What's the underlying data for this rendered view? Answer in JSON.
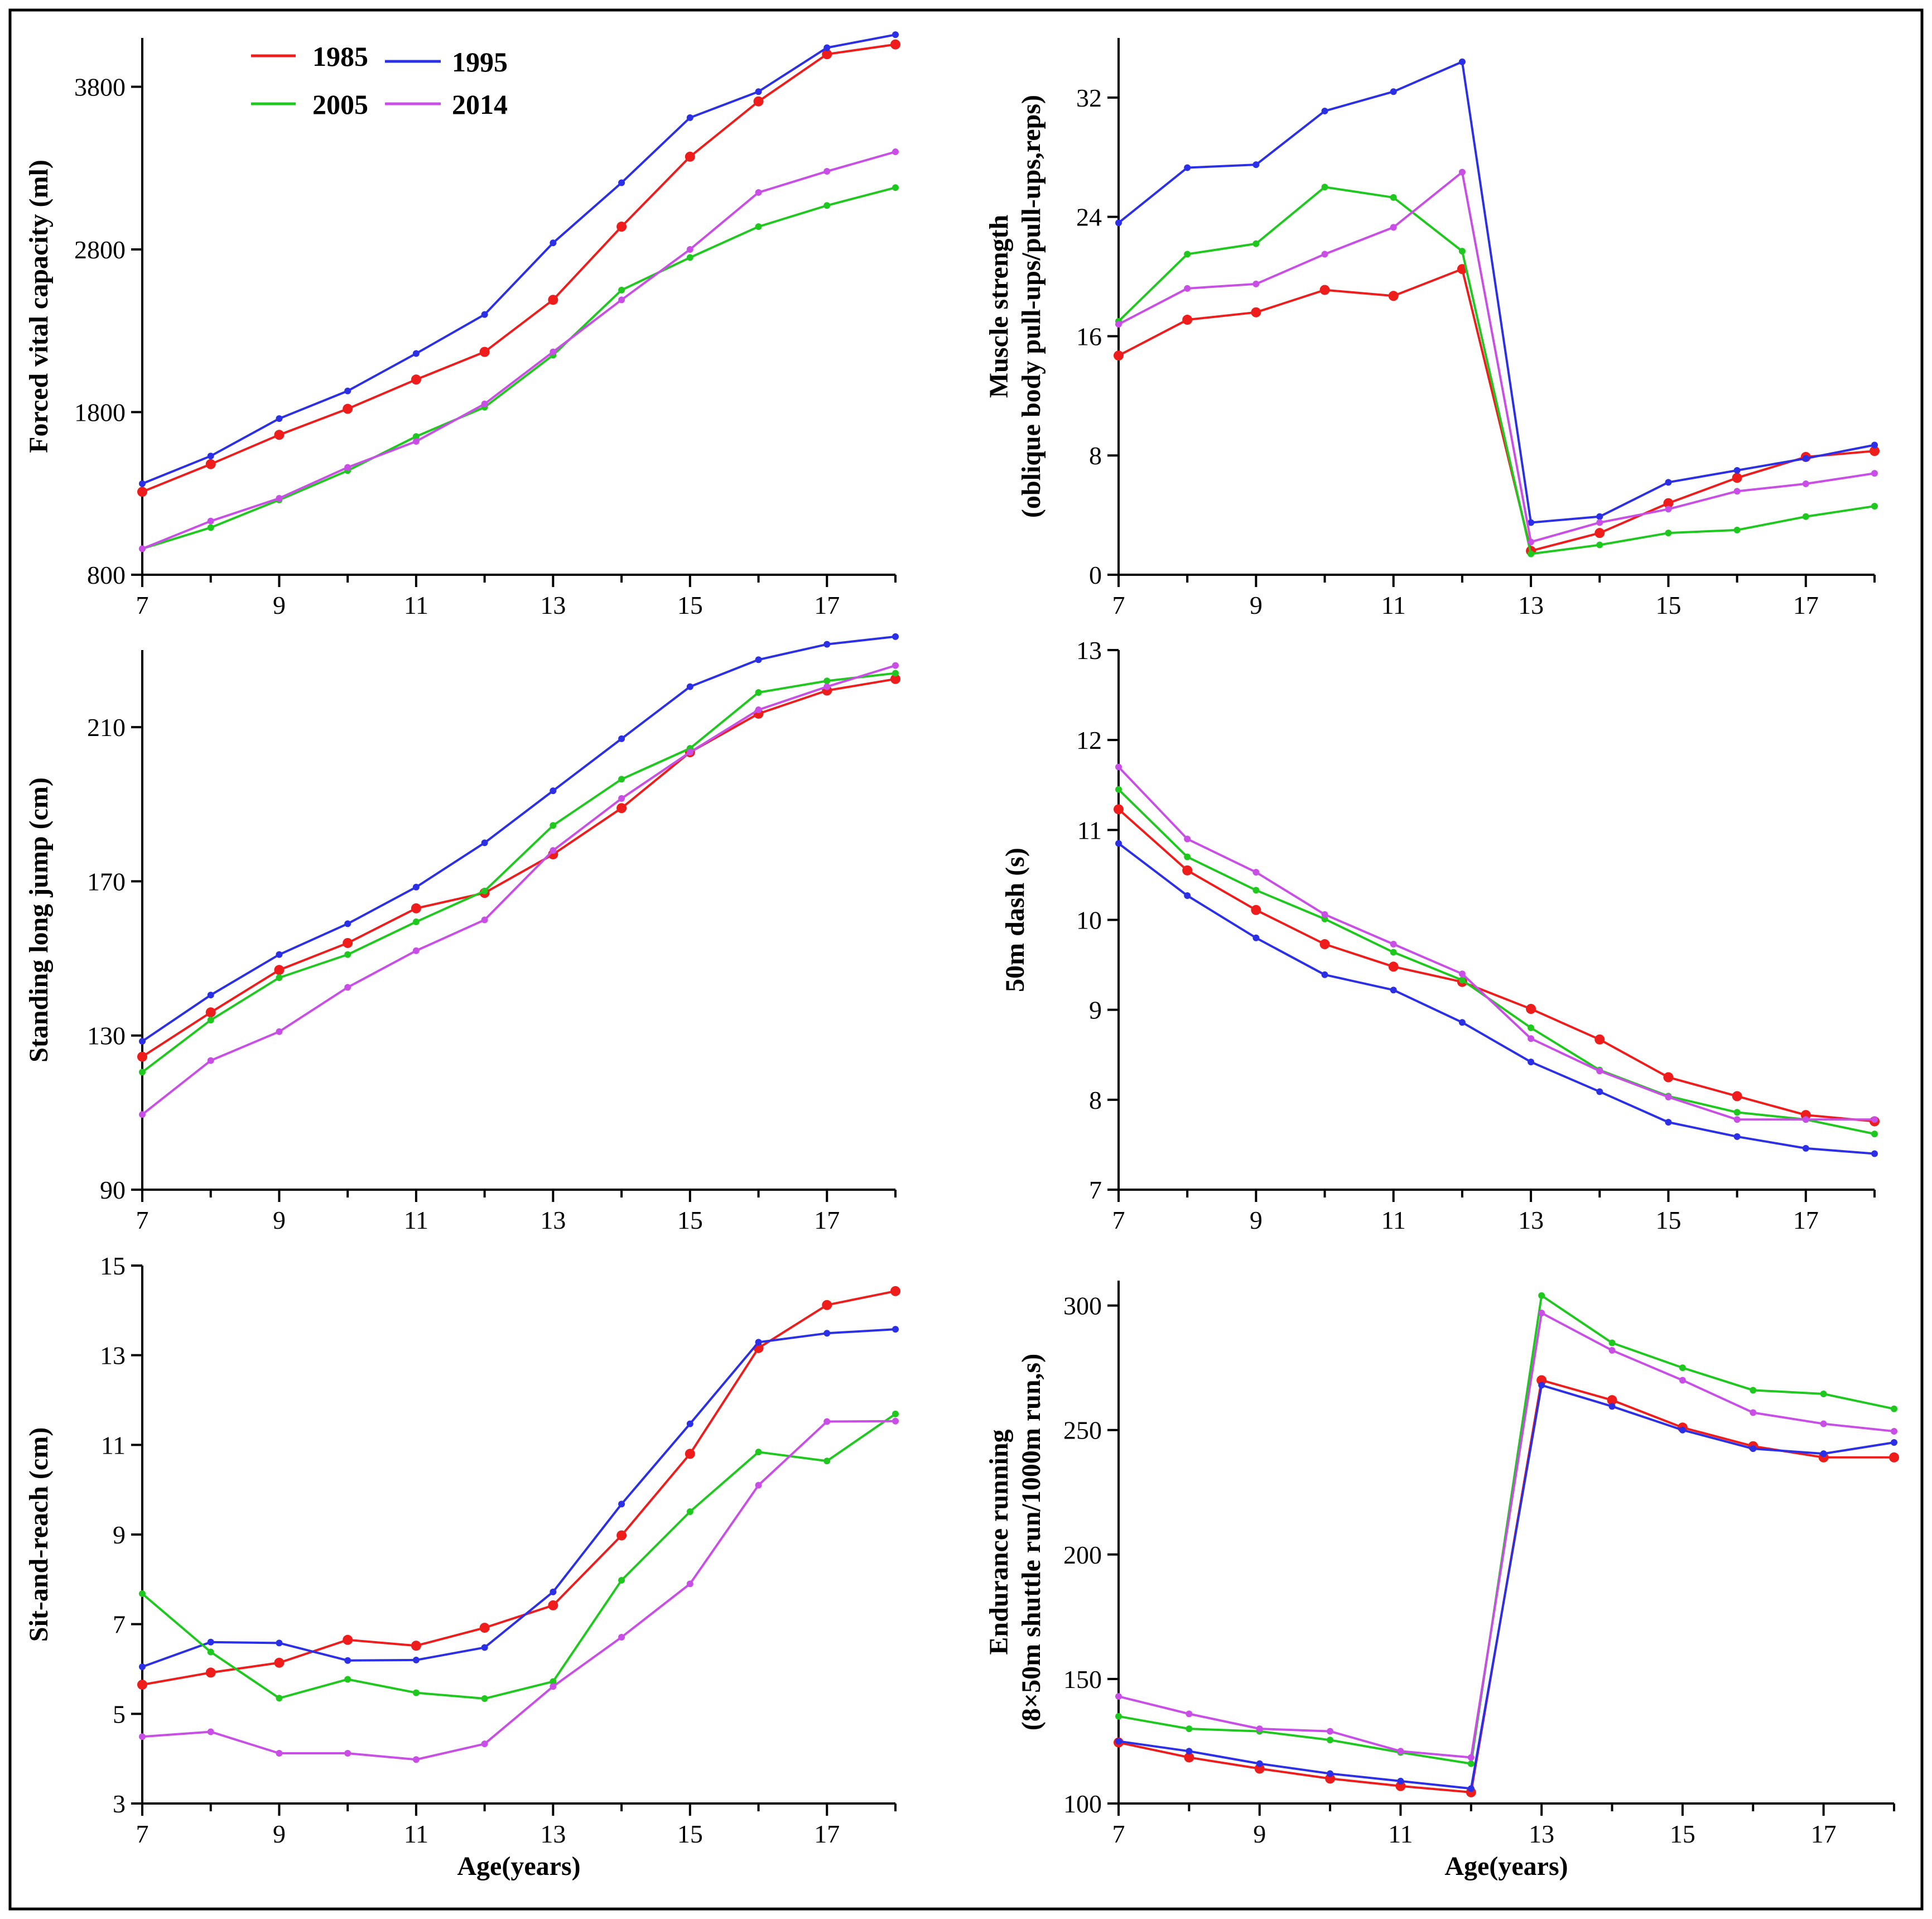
{
  "legend": [
    {
      "label": "1985",
      "color": "#ef1c1c"
    },
    {
      "label": "1995",
      "color": "#2b30e6"
    },
    {
      "label": "2005",
      "color": "#1ec81e"
    },
    {
      "label": "2014",
      "color": "#c84ee6"
    }
  ],
  "chart_data": [
    {
      "id": "fvc",
      "type": "line",
      "ylabel": [
        "Forced vital capacity (ml)"
      ],
      "xlabel": "",
      "x": [
        7,
        8,
        9,
        10,
        11,
        12,
        13,
        14,
        15,
        16,
        17,
        18
      ],
      "xlim": [
        7,
        18
      ],
      "xticks": [
        7,
        9,
        11,
        13,
        15,
        17
      ],
      "ylim": [
        800,
        4100
      ],
      "yticks": [
        800,
        1800,
        2800,
        3800
      ],
      "series": [
        {
          "name": "1985",
          "values": [
            1310,
            1480,
            1660,
            1820,
            2000,
            2170,
            2490,
            2940,
            3370,
            3710,
            4000,
            4060
          ]
        },
        {
          "name": "1995",
          "values": [
            1360,
            1530,
            1760,
            1930,
            2160,
            2400,
            2840,
            3210,
            3610,
            3770,
            4040,
            4120
          ]
        },
        {
          "name": "2005",
          "values": [
            960,
            1090,
            1260,
            1440,
            1650,
            1830,
            2150,
            2550,
            2750,
            2940,
            3070,
            3180
          ]
        },
        {
          "name": "2014",
          "values": [
            960,
            1130,
            1270,
            1460,
            1620,
            1850,
            2170,
            2490,
            2800,
            3150,
            3280,
            3400
          ]
        }
      ]
    },
    {
      "id": "muscle",
      "type": "line",
      "ylabel": [
        "Muscle strength",
        "(oblique body pull-ups/pull-ups,reps)"
      ],
      "xlabel": "",
      "x": [
        7,
        8,
        9,
        10,
        11,
        12,
        13,
        14,
        15,
        16,
        17,
        18
      ],
      "xlim": [
        7,
        18
      ],
      "xticks": [
        7,
        9,
        11,
        13,
        15,
        17
      ],
      "ylim": [
        0,
        36
      ],
      "yticks": [
        0,
        8,
        16,
        24,
        32
      ],
      "series": [
        {
          "name": "1985",
          "values": [
            14.7,
            17.1,
            17.6,
            19.1,
            18.7,
            20.5,
            1.6,
            2.8,
            4.8,
            6.5,
            7.9,
            8.3
          ]
        },
        {
          "name": "1995",
          "values": [
            23.6,
            27.3,
            27.5,
            31.1,
            32.4,
            34.4,
            3.5,
            3.9,
            6.2,
            7.0,
            7.8,
            8.7
          ]
        },
        {
          "name": "2005",
          "values": [
            17.0,
            21.5,
            22.2,
            26.0,
            25.3,
            21.7,
            1.4,
            2.0,
            2.8,
            3.0,
            3.9,
            4.6
          ]
        },
        {
          "name": "2014",
          "values": [
            16.8,
            19.2,
            19.5,
            21.5,
            23.3,
            27.0,
            2.2,
            3.5,
            4.4,
            5.6,
            6.1,
            6.8
          ]
        }
      ]
    },
    {
      "id": "jump",
      "type": "line",
      "ylabel": [
        "Standing long jump (cm)"
      ],
      "xlabel": "",
      "x": [
        7,
        8,
        9,
        10,
        11,
        12,
        13,
        14,
        15,
        16,
        17,
        18
      ],
      "xlim": [
        7,
        18
      ],
      "xticks": [
        7,
        9,
        11,
        13,
        15,
        17
      ],
      "ylim": [
        90,
        230
      ],
      "yticks": [
        90,
        130,
        170,
        210
      ],
      "series": [
        {
          "name": "1985",
          "values": [
            124.5,
            136,
            147,
            154,
            163,
            167,
            177,
            189,
            203.5,
            213.5,
            219.5,
            222.5
          ]
        },
        {
          "name": "1995",
          "values": [
            128.5,
            140.5,
            151,
            159,
            168.5,
            180,
            193.5,
            207,
            220.5,
            227.5,
            231.5,
            233.5
          ]
        },
        {
          "name": "2005",
          "values": [
            120.5,
            134,
            145,
            151,
            159.5,
            167.5,
            184.5,
            196.5,
            204.5,
            219,
            222,
            224
          ]
        },
        {
          "name": "2014",
          "values": [
            109.5,
            123.5,
            131,
            142.5,
            152,
            160,
            178,
            191.5,
            203.5,
            214.5,
            220.5,
            226
          ]
        }
      ]
    },
    {
      "id": "dash",
      "type": "line",
      "ylabel": [
        "50m dash (s)"
      ],
      "xlabel": "",
      "x": [
        7,
        8,
        9,
        10,
        11,
        12,
        13,
        14,
        15,
        16,
        17,
        18
      ],
      "xlim": [
        7,
        18
      ],
      "xticks": [
        7,
        9,
        11,
        13,
        15,
        17
      ],
      "ylim": [
        7,
        13
      ],
      "yticks": [
        7,
        8,
        9,
        10,
        11,
        12,
        13
      ],
      "series": [
        {
          "name": "1985",
          "values": [
            11.23,
            10.55,
            10.11,
            9.73,
            9.48,
            9.31,
            9.01,
            8.67,
            8.25,
            8.04,
            7.83,
            7.76
          ]
        },
        {
          "name": "1995",
          "values": [
            10.85,
            10.27,
            9.8,
            9.39,
            9.22,
            8.86,
            8.42,
            8.09,
            7.75,
            7.59,
            7.46,
            7.4
          ]
        },
        {
          "name": "2005",
          "values": [
            11.45,
            10.7,
            10.33,
            10.01,
            9.64,
            9.33,
            8.8,
            8.33,
            8.04,
            7.86,
            7.78,
            7.62
          ]
        },
        {
          "name": "2014",
          "values": [
            11.7,
            10.9,
            10.53,
            10.06,
            9.73,
            9.4,
            8.68,
            8.32,
            8.03,
            7.78,
            7.78,
            7.78
          ]
        }
      ]
    },
    {
      "id": "sit",
      "type": "line",
      "ylabel": [
        "Sit-and-reach (cm)"
      ],
      "xlabel": "Age(years)",
      "x": [
        7,
        8,
        9,
        10,
        11,
        12,
        13,
        14,
        15,
        16,
        17,
        18
      ],
      "xlim": [
        7,
        18
      ],
      "xticks": [
        7,
        9,
        11,
        13,
        15,
        17
      ],
      "ylim": [
        3,
        15
      ],
      "yticks": [
        3,
        5,
        7,
        9,
        11,
        13,
        15
      ],
      "series": [
        {
          "name": "1985",
          "values": [
            5.65,
            5.92,
            6.14,
            6.65,
            6.52,
            6.92,
            7.42,
            8.98,
            10.8,
            13.16,
            14.12,
            14.43
          ]
        },
        {
          "name": "1995",
          "values": [
            6.05,
            6.6,
            6.58,
            6.19,
            6.2,
            6.48,
            7.72,
            9.68,
            11.47,
            13.29,
            13.49,
            13.58
          ]
        },
        {
          "name": "2005",
          "values": [
            7.68,
            6.38,
            5.35,
            5.77,
            5.47,
            5.34,
            5.72,
            7.98,
            9.51,
            10.84,
            10.64,
            11.69
          ]
        },
        {
          "name": "2014",
          "values": [
            4.49,
            4.6,
            4.12,
            4.12,
            3.98,
            4.33,
            5.61,
            6.71,
            7.9,
            10.1,
            11.52,
            11.53
          ]
        }
      ]
    },
    {
      "id": "endurance",
      "type": "line",
      "ylabel": [
        "Endurance running",
        "(8×50m shuttle run/1000m run,s)"
      ],
      "xlabel": "Age(years)",
      "x": [
        7,
        8,
        9,
        10,
        11,
        12,
        13,
        14,
        15,
        16,
        17,
        18
      ],
      "xlim": [
        7,
        18
      ],
      "xticks": [
        7,
        9,
        11,
        13,
        15,
        17
      ],
      "ylim": [
        100,
        310
      ],
      "yticks": [
        100,
        150,
        200,
        250,
        300
      ],
      "series": [
        {
          "name": "1985",
          "values": [
            124.5,
            118.5,
            114,
            110,
            107,
            104.5,
            270,
            262,
            251,
            243.5,
            239,
            239
          ]
        },
        {
          "name": "1995",
          "values": [
            125,
            121,
            116,
            112,
            109,
            106,
            268,
            259.5,
            250,
            242.5,
            240.5,
            245
          ]
        },
        {
          "name": "2005",
          "values": [
            135,
            130,
            129,
            125.5,
            120.5,
            116,
            304,
            285,
            275,
            266,
            264.5,
            258.5
          ]
        },
        {
          "name": "2014",
          "values": [
            143,
            136,
            130,
            129,
            121,
            118.5,
            297,
            282,
            270,
            257,
            252.5,
            249.5
          ]
        }
      ]
    }
  ]
}
